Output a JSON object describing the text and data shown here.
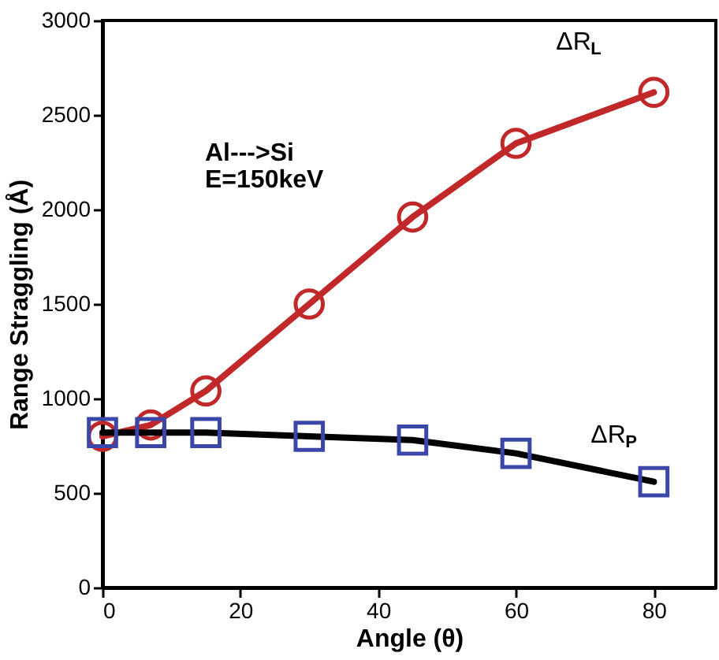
{
  "chart_data": {
    "type": "line",
    "xlabel": "Angle (θ)",
    "ylabel": "Range Straggling (Å)",
    "annotations": [
      "Al--->Si",
      "E=150keV"
    ],
    "x": [
      0,
      7,
      15,
      30,
      45,
      60,
      80
    ],
    "series": [
      {
        "name": "ΔR$_{L}$",
        "color": "#c0282a",
        "marker": "circle",
        "values": [
          800,
          860,
          1040,
          1500,
          1960,
          2350,
          2620
        ]
      },
      {
        "name": "ΔR$_{P}$",
        "color": "#000000",
        "marker": "square",
        "values": [
          820,
          820,
          820,
          800,
          780,
          710,
          560
        ]
      }
    ],
    "xlim": [
      0,
      89
    ],
    "xticks": [
      0,
      20,
      40,
      60,
      80
    ],
    "ylim": [
      0,
      3000
    ],
    "yticks": [
      0,
      500,
      1000,
      1500,
      2000,
      2500,
      3000
    ],
    "grid": false
  }
}
